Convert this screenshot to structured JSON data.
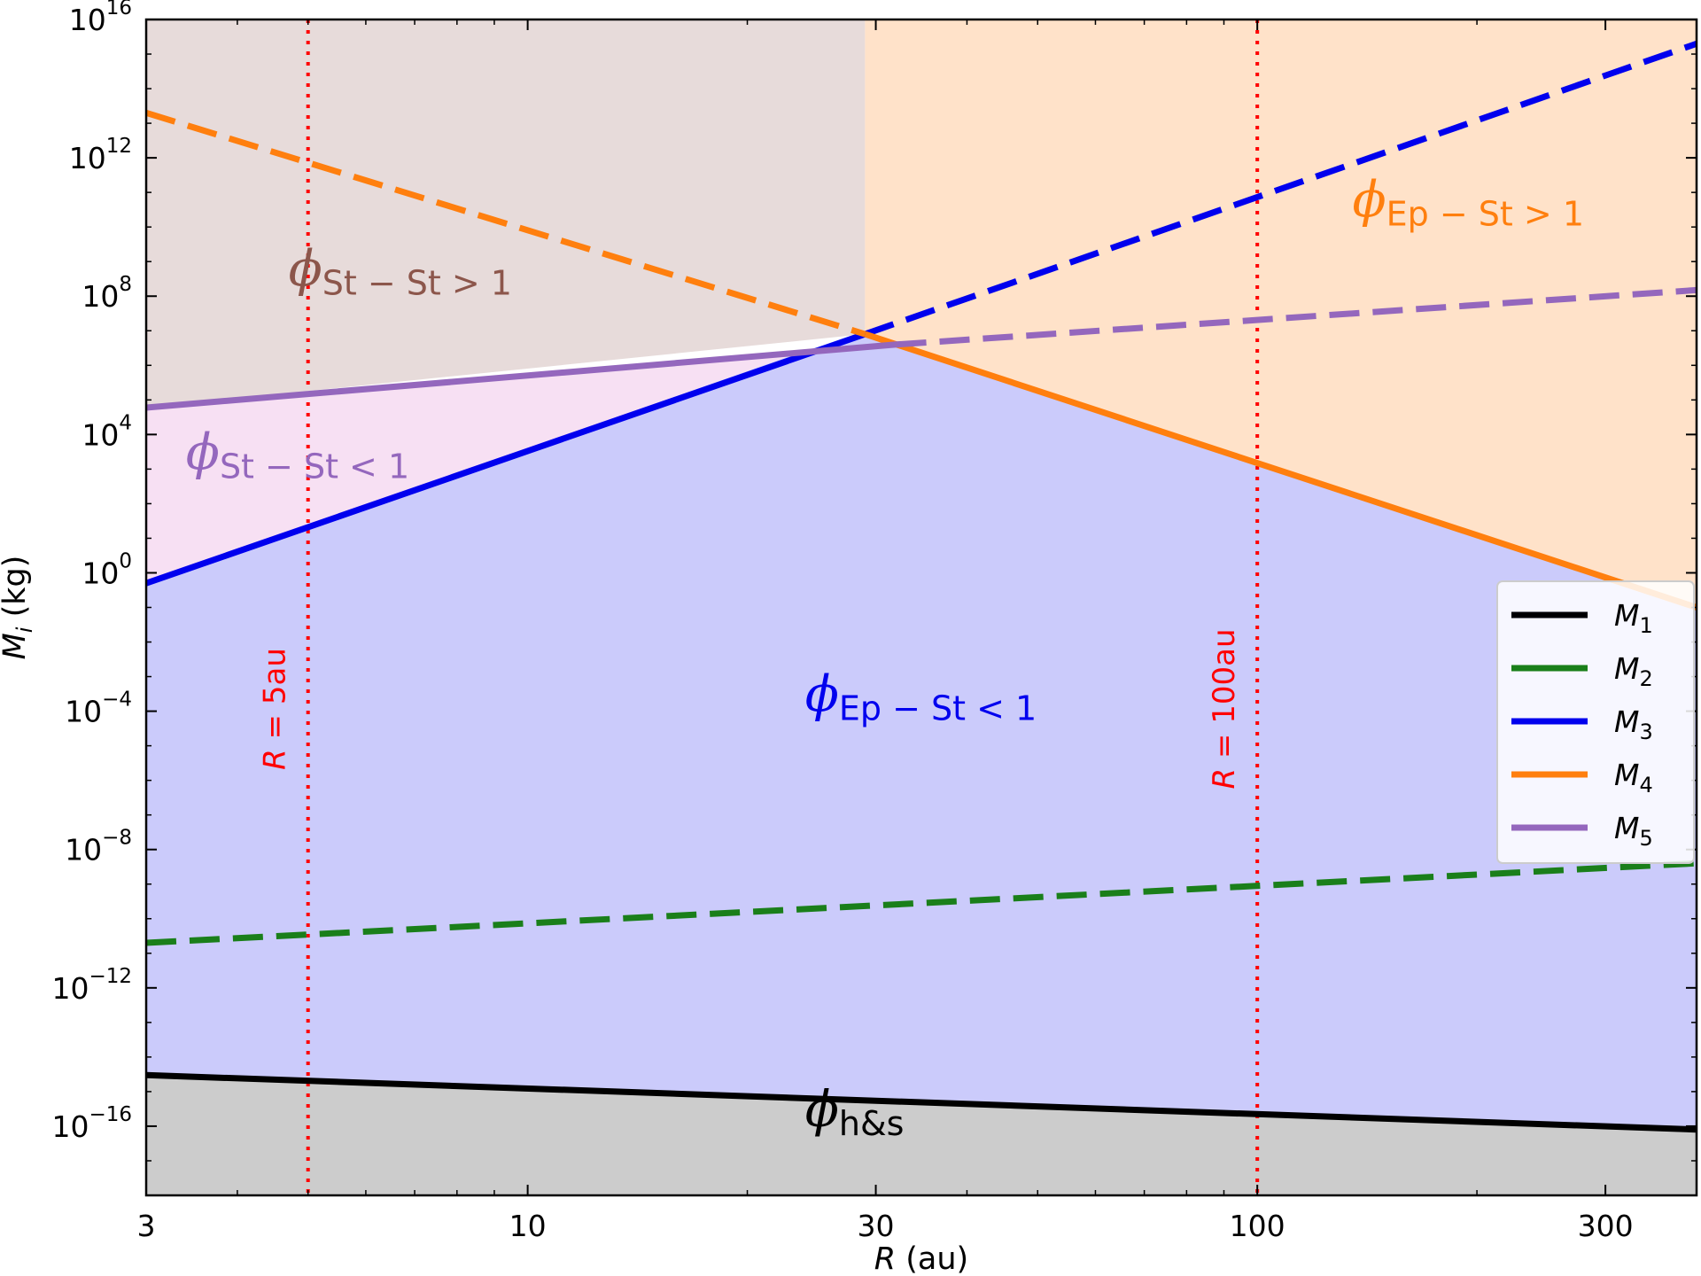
{
  "chart_data": {
    "type": "line",
    "title": "",
    "xlabel": "(au)",
    "xlabel_var": "R",
    "ylabel": "(kg)",
    "ylabel_var": "M",
    "ylabel_sub": "i",
    "xscale": "log",
    "yscale": "log",
    "xlim": [
      3,
      400
    ],
    "ylim": [
      1e-18,
      1e+16
    ],
    "x_ticks": [
      {
        "value": 3,
        "label": "3"
      },
      {
        "value": 10,
        "label": "10"
      },
      {
        "value": 30,
        "label": "30"
      },
      {
        "value": 100,
        "label": "100"
      },
      {
        "value": 300,
        "label": "300"
      }
    ],
    "y_ticks": [
      {
        "value": 1e+16,
        "base": "10",
        "exp": "16"
      },
      {
        "value": 1000000000000.0,
        "base": "10",
        "exp": "12"
      },
      {
        "value": 100000000.0,
        "base": "10",
        "exp": "8"
      },
      {
        "value": 10000.0,
        "base": "10",
        "exp": "4"
      },
      {
        "value": 1,
        "base": "10",
        "exp": "0"
      },
      {
        "value": 0.0001,
        "base": "10",
        "exp": "−4"
      },
      {
        "value": 1e-08,
        "base": "10",
        "exp": "−8"
      },
      {
        "value": 1e-12,
        "base": "10",
        "exp": "−12"
      },
      {
        "value": 1e-16,
        "base": "10",
        "exp": "−16"
      }
    ],
    "grid": false,
    "legend_position": "center-right",
    "series": [
      {
        "name": "M",
        "sub": "1",
        "color": "#000000",
        "segments": [
          {
            "x": [
              3,
              400
            ],
            "y": [
              3e-15,
              8e-17
            ],
            "style": "solid"
          }
        ]
      },
      {
        "name": "M",
        "sub": "2",
        "color": "#1a7f1a",
        "segments": [
          {
            "x": [
              3,
              400
            ],
            "y": [
              2e-11,
              4e-09
            ],
            "style": "dashed"
          }
        ]
      },
      {
        "name": "M",
        "sub": "3",
        "color": "#0000ee",
        "segments": [
          {
            "x": [
              3,
              29
            ],
            "y": [
              0.5,
              8000000.0
            ],
            "style": "solid"
          },
          {
            "x": [
              29,
              400
            ],
            "y": [
              8000000.0,
              2000000000000000.0
            ],
            "style": "dashed"
          }
        ]
      },
      {
        "name": "M",
        "sub": "4",
        "color": "#ff7f0e",
        "segments": [
          {
            "x": [
              3,
              29
            ],
            "y": [
              20000000000000.0,
              8000000.0
            ],
            "style": "dashed"
          },
          {
            "x": [
              29,
              400
            ],
            "y": [
              8000000.0,
              0.1
            ],
            "style": "solid"
          }
        ]
      },
      {
        "name": "M",
        "sub": "5",
        "color": "#9467bd",
        "segments": [
          {
            "x": [
              3,
              32
            ],
            "y": [
              60000.0,
              4000000.0
            ],
            "style": "solid"
          },
          {
            "x": [
              32,
              400
            ],
            "y": [
              4000000.0,
              150000000.0
            ],
            "style": "dashed"
          }
        ]
      }
    ],
    "vlines": [
      {
        "x": 5,
        "label_var": "R",
        "label_rest": " = 5au",
        "color": "#ff0000"
      },
      {
        "x": 100,
        "label_var": "R",
        "label_rest": " = 100au",
        "color": "#ff0000"
      }
    ],
    "regions": [
      {
        "id": "st-st-gt",
        "color": "#e7dbda",
        "polygon": [
          [
            3,
            1e+16
          ],
          [
            29,
            1e+16
          ],
          [
            29,
            8000000.0
          ],
          [
            3,
            60000.0
          ]
        ]
      },
      {
        "id": "ep-st-gt",
        "color": "#ffe2c9",
        "polygon": [
          [
            29,
            1e+16
          ],
          [
            400,
            1e+16
          ],
          [
            400,
            0.1
          ],
          [
            29,
            8000000.0
          ]
        ]
      },
      {
        "id": "st-st-lt",
        "color": "#f7e0f3",
        "polygon": [
          [
            3,
            60000.0
          ],
          [
            24.3,
            2900000.0
          ],
          [
            3,
            0.5
          ]
        ]
      },
      {
        "id": "ep-st-lt",
        "color": "#cbcbfb",
        "polygon": [
          [
            3,
            0.5
          ],
          [
            24.3,
            2900000.0
          ],
          [
            29,
            8000000.0
          ],
          [
            32,
            4000000.0
          ],
          [
            400,
            0.1
          ],
          [
            400,
            8e-17
          ],
          [
            3,
            3e-15
          ]
        ]
      },
      {
        "id": "hs",
        "color": "#cccccc",
        "polygon": [
          [
            3,
            3e-15
          ],
          [
            400,
            8e-17
          ],
          [
            400,
            1e-18
          ],
          [
            3,
            1e-18
          ]
        ]
      }
    ],
    "annotations": [
      {
        "id": "st-st-gt",
        "symbol": "ϕ",
        "sub": "St − St > 1",
        "color": "#8c564b",
        "x": 4.7,
        "y": 200000000.0
      },
      {
        "id": "st-st-lt",
        "symbol": "ϕ",
        "sub": "St − St < 1",
        "color": "#9467bd",
        "x": 3.4,
        "y": 1000.0
      },
      {
        "id": "ep-st-gt",
        "symbol": "ϕ",
        "sub": "Ep − St > 1",
        "color": "#ff7f0e",
        "x": 135,
        "y": 20000000000.0
      },
      {
        "id": "ep-st-lt",
        "symbol": "ϕ",
        "sub": "Ep − St < 1",
        "color": "#0000ee",
        "x": 24,
        "y": 0.0001
      },
      {
        "id": "hs",
        "symbol": "ϕ",
        "sub": "h&s",
        "color": "#000000",
        "x": 24,
        "y": 1e-16
      }
    ]
  }
}
